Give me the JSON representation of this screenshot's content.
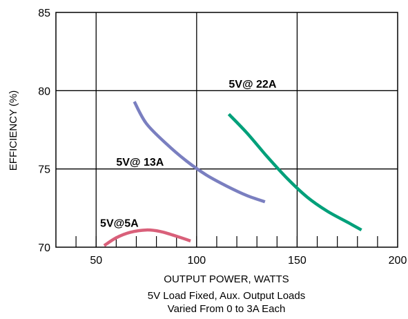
{
  "chart_data": {
    "type": "line",
    "xlabel": "OUTPUT POWER, WATTS",
    "ylabel": "EFFICIENCY (%)",
    "xlim": [
      30,
      200
    ],
    "ylim": [
      70,
      85
    ],
    "x_ticks": [
      50,
      100,
      150,
      200
    ],
    "y_ticks": [
      70,
      75,
      80,
      85
    ],
    "x_minor_step": 10,
    "grid": true,
    "notes": [
      "5V Load Fixed, Aux. Output Loads",
      "Varied From 0 to 3A Each"
    ],
    "series": [
      {
        "name": "5V@ 22A",
        "color": "#00a07a",
        "x": [
          116,
          125,
          135,
          145,
          155,
          165,
          175,
          182
        ],
        "y": [
          78.5,
          77.3,
          75.8,
          74.4,
          73.2,
          72.3,
          71.6,
          71.1
        ]
      },
      {
        "name": "5V@ 13A",
        "color": "#7a7fc0",
        "x": [
          69,
          75,
          85,
          95,
          105,
          115,
          125,
          134
        ],
        "y": [
          79.3,
          77.9,
          76.6,
          75.5,
          74.6,
          73.9,
          73.3,
          72.9
        ]
      },
      {
        "name": "5V@5A",
        "color": "#d9607a",
        "x": [
          54,
          60,
          67,
          75,
          82,
          90,
          97
        ],
        "y": [
          70.1,
          70.6,
          70.95,
          71.1,
          71.0,
          70.7,
          70.4
        ]
      }
    ]
  }
}
